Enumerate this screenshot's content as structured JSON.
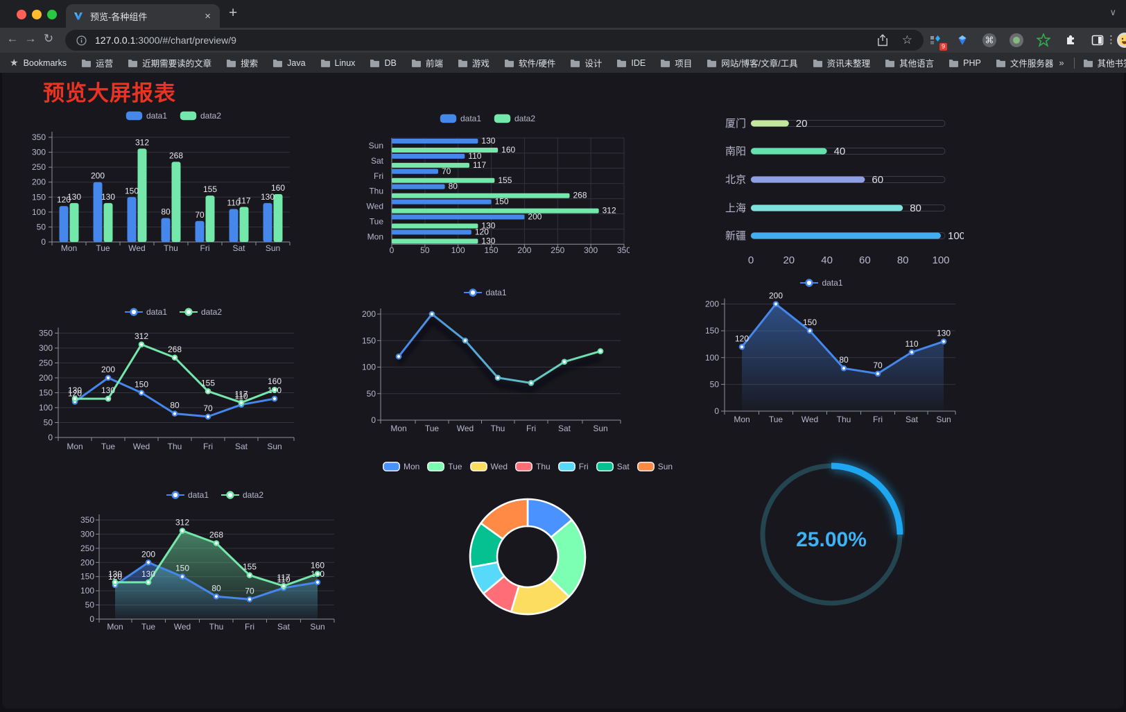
{
  "browser": {
    "tab": {
      "title": "预览-各种组件",
      "close": "×",
      "new_tab": "+",
      "chevron": "∨"
    },
    "address": {
      "url_host": "127.0.0.1",
      "url_rest": ":3000/#/chart/preview/9"
    },
    "nav": {
      "back": "←",
      "forward": "→",
      "reload": "↻",
      "home": "⌂"
    },
    "extension_badge": "9",
    "menu_dots": "⋮",
    "bookmarks": {
      "star_label": "Bookmarks",
      "items": [
        "运营",
        "近期需要读的文章",
        "搜索",
        "Java",
        "Linux",
        "DB",
        "前端",
        "游戏",
        "软件/硬件",
        "设计",
        "IDE",
        "项目",
        "网站/博客/文章/工具",
        "资讯未整理",
        "其他语言",
        "PHP",
        "文件服务器"
      ],
      "overflow": "»",
      "other": "其他书签"
    }
  },
  "page": {
    "title": "预览大屏报表",
    "title_color": "#ec3323"
  },
  "charts": {
    "bar_vertical": {
      "type": "bar",
      "categories": [
        "Mon",
        "Tue",
        "Wed",
        "Thu",
        "Fri",
        "Sat",
        "Sun"
      ],
      "series": [
        {
          "name": "data1",
          "color": "#4687ec",
          "values": [
            120,
            200,
            150,
            80,
            70,
            110,
            130
          ]
        },
        {
          "name": "data2",
          "color": "#74e8ab",
          "values": [
            130,
            130,
            312,
            268,
            155,
            117,
            160
          ]
        }
      ],
      "ylim": [
        0,
        350
      ],
      "yticks": [
        0,
        50,
        100,
        150,
        200,
        250,
        300,
        350
      ],
      "grid": true,
      "legend_position": "top"
    },
    "bar_horizontal": {
      "type": "bar",
      "orientation": "horizontal",
      "categories": [
        "Mon",
        "Tue",
        "Wed",
        "Thu",
        "Fri",
        "Sat",
        "Sun"
      ],
      "display_top_to_bottom": [
        "Sun",
        "Sat",
        "Fri",
        "Thu",
        "Wed",
        "Tue",
        "Mon"
      ],
      "series": [
        {
          "name": "data1",
          "color": "#4687ec",
          "values": [
            120,
            200,
            150,
            80,
            70,
            110,
            130
          ]
        },
        {
          "name": "data2",
          "color": "#74e8ab",
          "values": [
            130,
            130,
            312,
            268,
            155,
            117,
            160
          ]
        }
      ],
      "xlim": [
        0,
        350
      ],
      "xticks": [
        0,
        50,
        100,
        150,
        200,
        250,
        300,
        350
      ],
      "grid": true,
      "legend_position": "top"
    },
    "progress": {
      "type": "bar",
      "orientation": "horizontal",
      "xlim": [
        0,
        100
      ],
      "xticks": [
        0,
        20,
        40,
        60,
        80,
        100
      ],
      "items": [
        {
          "label": "厦门",
          "value": 20,
          "color": "#c3e79c"
        },
        {
          "label": "南阳",
          "value": 40,
          "color": "#63e2ae"
        },
        {
          "label": "北京",
          "value": 60,
          "color": "#8f9fe6"
        },
        {
          "label": "上海",
          "value": 80,
          "color": "#7de2dd"
        },
        {
          "label": "新疆",
          "value": 100,
          "color": "#41aef2"
        }
      ]
    },
    "line_two": {
      "type": "line",
      "categories": [
        "Mon",
        "Tue",
        "Wed",
        "Thu",
        "Fri",
        "Sat",
        "Sun"
      ],
      "series": [
        {
          "name": "data1",
          "color": "#4687ec",
          "values": [
            120,
            200,
            150,
            80,
            70,
            110,
            130
          ]
        },
        {
          "name": "data2",
          "color": "#74e8ab",
          "values": [
            130,
            130,
            312,
            268,
            155,
            117,
            160
          ]
        }
      ],
      "ylim": [
        0,
        350
      ],
      "yticks": [
        0,
        50,
        100,
        150,
        200,
        250,
        300,
        350
      ],
      "labels": true,
      "legend_position": "top"
    },
    "line_gradient": {
      "type": "line",
      "categories": [
        "Mon",
        "Tue",
        "Wed",
        "Thu",
        "Fri",
        "Sat",
        "Sun"
      ],
      "series": [
        {
          "name": "data1",
          "color": "#4687ec",
          "color_end": "#73e8ac",
          "values": [
            120,
            200,
            150,
            80,
            70,
            110,
            130
          ]
        }
      ],
      "ylim": [
        0,
        200
      ],
      "yticks": [
        0,
        50,
        100,
        150,
        200
      ],
      "labels": false,
      "legend_position": "top"
    },
    "line_area": {
      "type": "area",
      "categories": [
        "Mon",
        "Tue",
        "Wed",
        "Thu",
        "Fri",
        "Sat",
        "Sun"
      ],
      "series": [
        {
          "name": "data1",
          "color": "#4687ec",
          "values": [
            120,
            200,
            150,
            80,
            70,
            110,
            130
          ]
        }
      ],
      "ylim": [
        0,
        200
      ],
      "yticks": [
        0,
        50,
        100,
        150,
        200
      ],
      "labels": true,
      "legend_position": "top"
    },
    "area_two": {
      "type": "area",
      "categories": [
        "Mon",
        "Tue",
        "Wed",
        "Thu",
        "Fri",
        "Sat",
        "Sun"
      ],
      "series": [
        {
          "name": "data1",
          "color": "#4687ec",
          "values": [
            120,
            200,
            150,
            80,
            70,
            110,
            130
          ]
        },
        {
          "name": "data2",
          "color": "#74e8ab",
          "values": [
            130,
            130,
            312,
            268,
            155,
            117,
            160
          ]
        }
      ],
      "ylim": [
        0,
        350
      ],
      "yticks": [
        0,
        50,
        100,
        150,
        200,
        250,
        300,
        350
      ],
      "labels": true,
      "legend_position": "top"
    },
    "donut": {
      "type": "pie",
      "inner_radius_ratio": 0.53,
      "legend_position": "top",
      "items": [
        {
          "label": "Mon",
          "value": 120,
          "color": "#4992ff"
        },
        {
          "label": "Tue",
          "value": 200,
          "color": "#7cffb2"
        },
        {
          "label": "Wed",
          "value": 150,
          "color": "#fddd60"
        },
        {
          "label": "Thu",
          "value": 80,
          "color": "#ff6e76"
        },
        {
          "label": "Fri",
          "value": 70,
          "color": "#58d9f9"
        },
        {
          "label": "Sat",
          "value": 110,
          "color": "#05c091"
        },
        {
          "label": "Sun",
          "value": 130,
          "color": "#ff8a45"
        }
      ]
    },
    "gauge": {
      "type": "gauge",
      "value": 25,
      "max": 100,
      "display": "25.00%",
      "color": "#1ea7f0",
      "track_color": "#24454f",
      "text_color": "#3eb2f2"
    }
  }
}
